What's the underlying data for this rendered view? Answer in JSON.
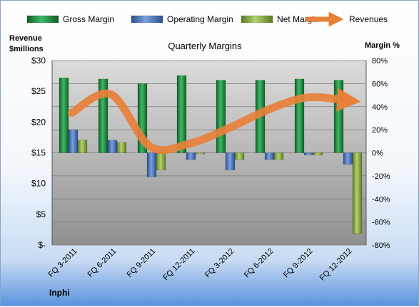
{
  "chart_data": {
    "type": "bar",
    "title": "Quarterly Margins",
    "company": "Inphi",
    "left_axis_title": "Revenue\n$millions",
    "right_axis_title": "Margin %",
    "left_ylim": [
      0,
      30
    ],
    "right_ylim": [
      -80,
      80
    ],
    "left_ticks": [
      "$-",
      "$5",
      "$10",
      "$15",
      "$20",
      "$25",
      "$30"
    ],
    "right_ticks": [
      "-80%",
      "-60%",
      "-40%",
      "-20%",
      "0%",
      "20%",
      "40%",
      "60%",
      "80%"
    ],
    "categories": [
      "FQ 3-2011",
      "FQ 6-2011",
      "FQ 9-2011",
      "FQ 12-2011",
      "FQ 3-2012",
      "FQ 6-2012",
      "FQ 9-2012",
      "FQ 12-2012"
    ],
    "series": [
      {
        "name": "Gross Margin",
        "axis": "right",
        "color": "#1f8a3c",
        "values": [
          65,
          64,
          60,
          67,
          63,
          63,
          64,
          63
        ]
      },
      {
        "name": "Operating Margin",
        "axis": "right",
        "color": "#4a74b8",
        "values": [
          20,
          11,
          -21,
          -6,
          -15,
          -6,
          -2,
          -10
        ]
      },
      {
        "name": "Net Margin",
        "axis": "right",
        "color": "#8caf48",
        "values": [
          11,
          9,
          -15,
          -1,
          -6,
          -6,
          -2,
          -70
        ]
      },
      {
        "name": "Revenues",
        "axis": "left",
        "color": "#e8803a",
        "values": [
          21.5,
          24.5,
          16.0,
          16.5,
          19.0,
          22.0,
          24.0,
          23.5
        ]
      }
    ],
    "grid": true,
    "legend_position": "top"
  }
}
